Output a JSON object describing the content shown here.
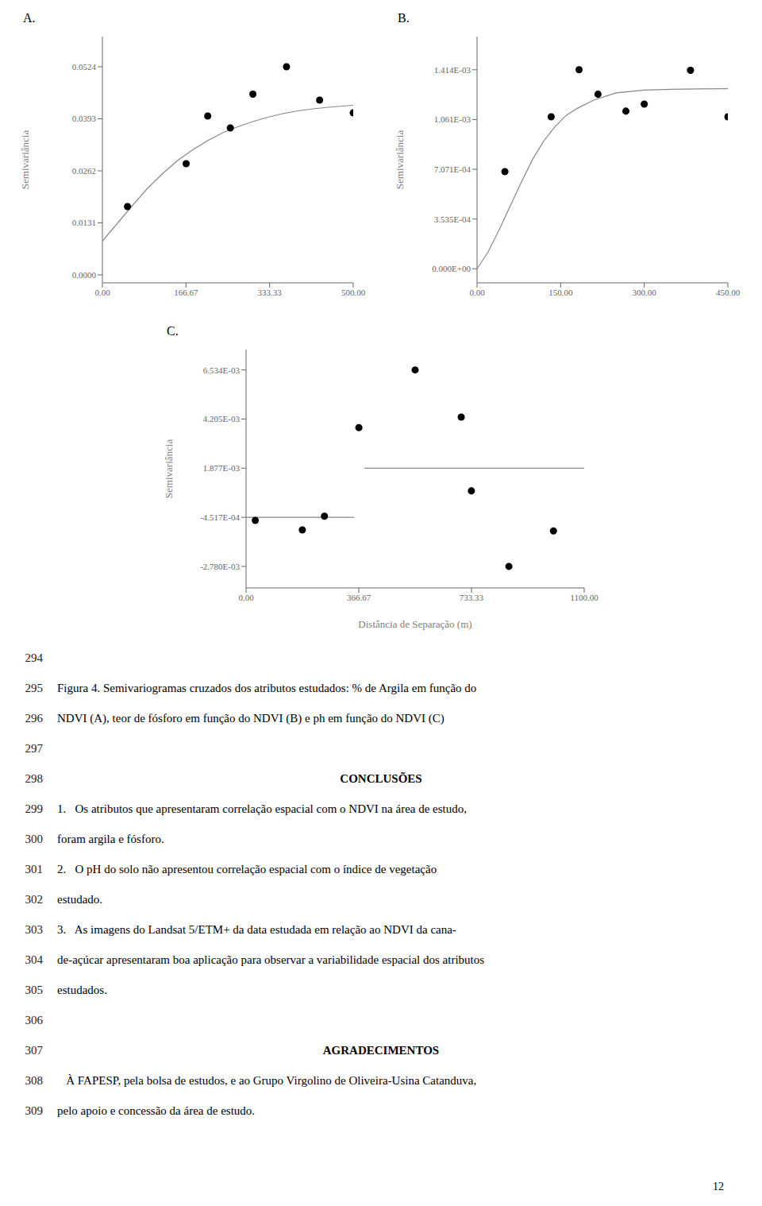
{
  "chart_data": [
    {
      "type": "scatter",
      "title": "A.",
      "ylabel": "Semivariância",
      "grid": false,
      "xlim": [
        0,
        500
      ],
      "xticks": [
        {
          "value": 0.0,
          "label": "0.00"
        },
        {
          "value": 166.67,
          "label": "166.67"
        },
        {
          "value": 333.33,
          "label": "333.33"
        },
        {
          "value": 500.0,
          "label": "500.00"
        }
      ],
      "ylim": [
        -0.002,
        0.06
      ],
      "yticks": [
        {
          "value": 0.0,
          "label": "0.0000"
        },
        {
          "value": 0.0131,
          "label": "0.0131"
        },
        {
          "value": 0.0262,
          "label": "0.0262"
        },
        {
          "value": 0.0393,
          "label": "0.0393"
        },
        {
          "value": 0.0524,
          "label": "0.0524"
        }
      ],
      "series": [
        {
          "type": "line",
          "color": "#888888",
          "x": [
            0,
            30,
            60,
            90,
            120,
            150,
            180,
            210,
            240,
            270,
            300,
            330,
            360,
            390,
            420,
            450,
            480,
            500
          ],
          "values": [
            0.0085,
            0.013,
            0.0175,
            0.0218,
            0.0255,
            0.0288,
            0.0315,
            0.0338,
            0.0358,
            0.0373,
            0.0386,
            0.0397,
            0.0406,
            0.0413,
            0.0418,
            0.0422,
            0.0425,
            0.0427
          ]
        },
        {
          "type": "scatter",
          "marker": "circle",
          "color": "#000000",
          "x": [
            50,
            167,
            210,
            255,
            300,
            367,
            433,
            500
          ],
          "values": [
            0.0172,
            0.028,
            0.04,
            0.037,
            0.0455,
            0.0524,
            0.044,
            0.0408
          ]
        }
      ]
    },
    {
      "type": "scatter",
      "title": "B.",
      "ylabel": "Semivariância",
      "grid": false,
      "xlim": [
        0,
        450
      ],
      "xticks": [
        {
          "value": 0.0,
          "label": "0.00"
        },
        {
          "value": 150.0,
          "label": "150.00"
        },
        {
          "value": 300.0,
          "label": "300.00"
        },
        {
          "value": 450.0,
          "label": "450.00"
        }
      ],
      "ylim": [
        -0.0001,
        0.00165
      ],
      "yticks": [
        {
          "value": 0.0,
          "label": "0.000E+00"
        },
        {
          "value": 0.0003535,
          "label": "3.535E-04"
        },
        {
          "value": 0.0007071,
          "label": "7.071E-04"
        },
        {
          "value": 0.0010606,
          "label": "1.061E-03"
        },
        {
          "value": 0.001414,
          "label": "1.414E-03"
        }
      ],
      "series": [
        {
          "type": "line",
          "color": "#888888",
          "x": [
            0,
            20,
            40,
            60,
            80,
            100,
            120,
            140,
            160,
            180,
            210,
            250,
            300,
            350,
            400,
            450
          ],
          "values": [
            0,
            0.00012,
            0.00028,
            0.00045,
            0.00062,
            0.00078,
            0.00091,
            0.00101,
            0.00109,
            0.00114,
            0.0012,
            0.00125,
            0.00127,
            0.001275,
            0.001278,
            0.00128
          ]
        },
        {
          "type": "scatter",
          "marker": "circle",
          "color": "#000000",
          "x": [
            50,
            133,
            183,
            217,
            267,
            300,
            383,
            450
          ],
          "values": [
            0.00069,
            0.00108,
            0.001414,
            0.00124,
            0.00112,
            0.00117,
            0.00141,
            0.00108
          ]
        }
      ]
    },
    {
      "type": "scatter",
      "title": "C.",
      "ylabel": "Semivariância",
      "xlabel": "Distância de Separação (m)",
      "grid": false,
      "xlim": [
        0,
        1100
      ],
      "xticks": [
        {
          "value": 0.0,
          "label": "0.00"
        },
        {
          "value": 366.67,
          "label": "366.67"
        },
        {
          "value": 733.33,
          "label": "733.33"
        },
        {
          "value": 1100.0,
          "label": "1100.00"
        }
      ],
      "ylim": [
        -0.0038,
        0.0075
      ],
      "yticks": [
        {
          "value": -0.00278,
          "label": "-2.780E-03"
        },
        {
          "value": -0.0004517,
          "label": "-4.517E-04"
        },
        {
          "value": 0.001877,
          "label": "1.877E-03"
        },
        {
          "value": 0.004205,
          "label": "4.205E-03"
        },
        {
          "value": 0.006534,
          "label": "6.534E-03"
        }
      ],
      "series": [
        {
          "type": "line",
          "color": "#888888",
          "x": [
            385,
            1100
          ],
          "values": [
            0.001877,
            0.001877
          ]
        },
        {
          "type": "line",
          "color": "#888888",
          "x": [
            0,
            352
          ],
          "values": [
            -0.0004517,
            -0.0004517
          ]
        },
        {
          "type": "scatter",
          "marker": "circle",
          "color": "#000000",
          "x": [
            30,
            183,
            255,
            367,
            550,
            700,
            733,
            855,
            1000
          ],
          "values": [
            -0.0006,
            -0.00105,
            -0.0004,
            0.0038,
            0.006534,
            0.0043,
            0.0008,
            -0.00278,
            -0.0011
          ]
        }
      ]
    }
  ],
  "text_lines": [
    {
      "number": "294"
    },
    {
      "number": "295",
      "text": "Figura 4. Semivariogramas cruzados dos atributos estudados: % de Argila em função do"
    },
    {
      "number": "296",
      "text": "NDVI (A), teor de fósforo em função do NDVI (B) e ph em função do NDVI (C)"
    },
    {
      "number": "297"
    },
    {
      "number": "298",
      "text": "CONCLUSÕES"
    },
    {
      "number": "299",
      "text": "1.   Os atributos que apresentaram correlação espacial com o NDVI na área de estudo,"
    },
    {
      "number": "300",
      "text": "foram argila e fósforo."
    },
    {
      "number": "301",
      "text": "2.   O pH do solo não apresentou correlação espacial com o índice de vegetação"
    },
    {
      "number": "302",
      "text": "estudado."
    },
    {
      "number": "303",
      "text": "3.   As imagens do Landsat 5/ETM+ da data estudada em relação ao NDVI da cana-"
    },
    {
      "number": "304",
      "text": "de-açúcar apresentaram boa aplicação para observar a variabilidade espacial dos atributos"
    },
    {
      "number": "305",
      "text": "estudados."
    },
    {
      "number": "306"
    },
    {
      "number": "307",
      "text": "AGRADECIMENTOS"
    },
    {
      "number": "308",
      "text": "   À FAPESP, pela bolsa de estudos, e ao Grupo Virgolino de Oliveira-Usina Catanduva,"
    },
    {
      "number": "309",
      "text": "pelo apoio e concessão da área de estudo."
    }
  ],
  "page_number": "12"
}
